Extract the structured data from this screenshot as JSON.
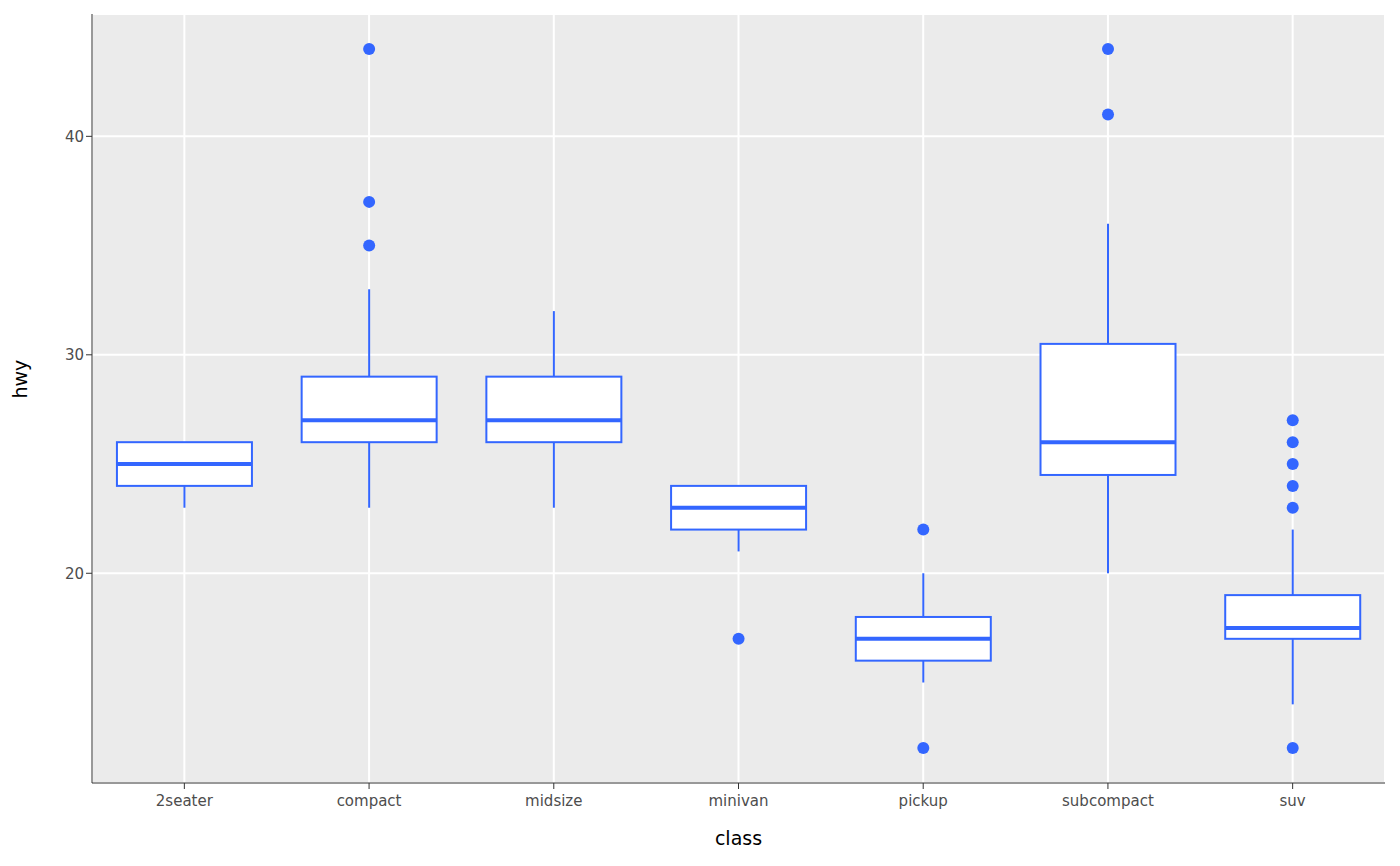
{
  "chart_data": {
    "type": "boxplot",
    "x_label": "class",
    "y_label": "hwy",
    "categories": [
      "2seater",
      "compact",
      "midsize",
      "minivan",
      "pickup",
      "subcompact",
      "suv"
    ],
    "whisker_low": [
      23,
      23,
      23,
      21,
      15,
      20,
      14
    ],
    "q1": [
      24,
      26,
      26,
      22,
      16,
      24.5,
      17
    ],
    "median": [
      25,
      27,
      27,
      23,
      17,
      26,
      17.5
    ],
    "q3": [
      26,
      29,
      29,
      24,
      18,
      30.5,
      19
    ],
    "whisker_high": [
      26,
      33,
      32,
      24,
      20,
      36,
      22
    ],
    "outliers": [
      [],
      [
        35,
        37,
        44
      ],
      [],
      [
        17
      ],
      [
        12,
        22
      ],
      [
        41,
        44
      ],
      [
        12,
        23,
        24,
        25,
        26,
        27
      ]
    ],
    "color": "#3366ff",
    "ylim": [
      10.4,
      45.6
    ],
    "yticks": [
      20,
      30,
      40
    ],
    "grid": true
  }
}
